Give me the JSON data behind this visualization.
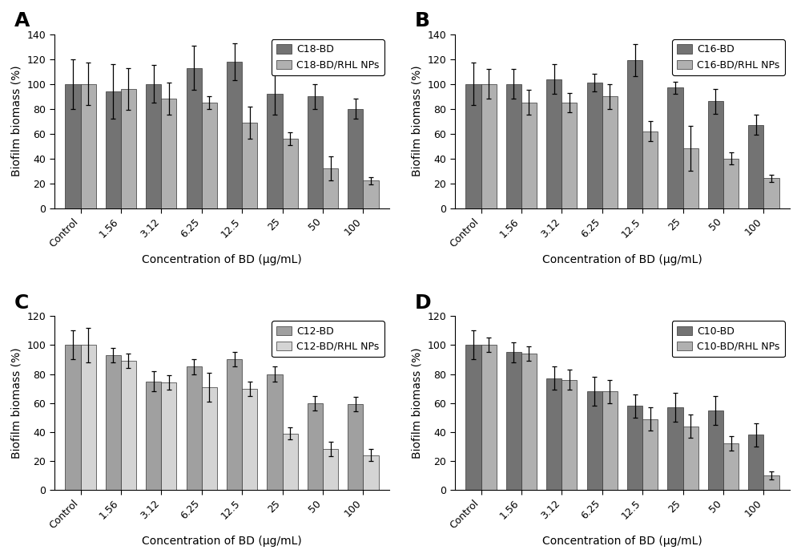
{
  "categories": [
    "Control",
    "1.56",
    "3.12",
    "6.25",
    "12.5",
    "25",
    "50",
    "100"
  ],
  "xlabel": "Concentration of BD (μg/mL)",
  "ylabel": "Biofilm biomass (%)",
  "panels": [
    {
      "label": "A",
      "dark_label": "C18-BD",
      "light_label": "C18-BD/RHL NPs",
      "ylim": [
        0,
        140
      ],
      "yticks": [
        0,
        20,
        40,
        60,
        80,
        100,
        120,
        140
      ],
      "dark_color": "#737373",
      "light_color": "#b0b0b0",
      "dark_values": [
        100,
        94,
        100,
        113,
        118,
        92,
        90,
        80
      ],
      "dark_errors": [
        20,
        22,
        15,
        18,
        15,
        17,
        10,
        8
      ],
      "light_values": [
        100,
        96,
        88,
        85,
        69,
        56,
        32,
        22
      ],
      "light_errors": [
        17,
        17,
        13,
        5,
        13,
        5,
        10,
        3
      ]
    },
    {
      "label": "B",
      "dark_label": "C16-BD",
      "light_label": "C16-BD/RHL NPs",
      "ylim": [
        0,
        140
      ],
      "yticks": [
        0,
        20,
        40,
        60,
        80,
        100,
        120,
        140
      ],
      "dark_color": "#737373",
      "light_color": "#b0b0b0",
      "dark_values": [
        100,
        100,
        104,
        101,
        119,
        97,
        86,
        67
      ],
      "dark_errors": [
        17,
        12,
        12,
        7,
        13,
        5,
        10,
        8
      ],
      "light_values": [
        100,
        85,
        85,
        90,
        62,
        48,
        40,
        24
      ],
      "light_errors": [
        12,
        10,
        8,
        10,
        8,
        18,
        5,
        3
      ]
    },
    {
      "label": "C",
      "dark_label": "C12-BD",
      "light_label": "C12-BD/RHL NPs",
      "ylim": [
        0,
        120
      ],
      "yticks": [
        0,
        20,
        40,
        60,
        80,
        100,
        120
      ],
      "dark_color": "#a0a0a0",
      "light_color": "#d4d4d4",
      "dark_values": [
        100,
        93,
        75,
        85,
        90,
        80,
        60,
        59
      ],
      "dark_errors": [
        10,
        5,
        7,
        5,
        5,
        5,
        5,
        5
      ],
      "light_values": [
        100,
        89,
        74,
        71,
        70,
        39,
        28,
        24
      ],
      "light_errors": [
        12,
        5,
        5,
        10,
        5,
        4,
        5,
        4
      ]
    },
    {
      "label": "D",
      "dark_label": "C10-BD",
      "light_label": "C10-BD/RHL NPs",
      "ylim": [
        0,
        120
      ],
      "yticks": [
        0,
        20,
        40,
        60,
        80,
        100,
        120
      ],
      "dark_color": "#737373",
      "light_color": "#b0b0b0",
      "dark_values": [
        100,
        95,
        77,
        68,
        58,
        57,
        55,
        38
      ],
      "dark_errors": [
        10,
        7,
        8,
        10,
        8,
        10,
        10,
        8
      ],
      "light_values": [
        100,
        94,
        76,
        68,
        49,
        44,
        32,
        10
      ],
      "light_errors": [
        5,
        5,
        7,
        8,
        8,
        8,
        5,
        3
      ]
    }
  ],
  "figure_width": 10.0,
  "figure_height": 6.96,
  "background_color": "#ffffff",
  "panel_label_fontsize": 18,
  "axis_label_fontsize": 10,
  "tick_fontsize": 9,
  "legend_fontsize": 9,
  "bar_width": 0.38
}
